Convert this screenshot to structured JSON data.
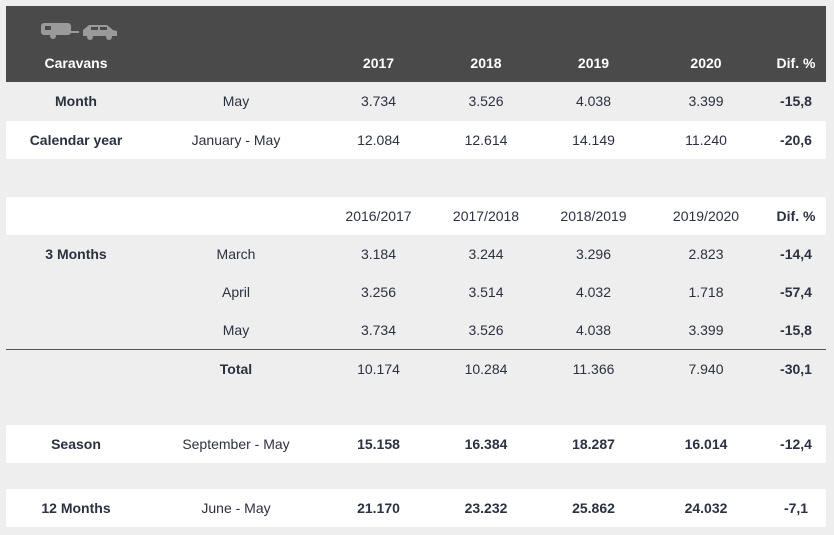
{
  "header": {
    "title": "Caravans",
    "icons": [
      "caravan-icon",
      "car-icon"
    ],
    "years": [
      "2017",
      "2018",
      "2019",
      "2020"
    ],
    "diff": "Dif. %",
    "bg_color": "#4a4a4a"
  },
  "month_row": {
    "label": "Month",
    "period": "May",
    "values": [
      "3.734",
      "3.526",
      "4.038",
      "3.399"
    ],
    "diff": "-15,8"
  },
  "calendar_row": {
    "label": "Calendar year",
    "period": "January - May",
    "values": [
      "12.084",
      "12.614",
      "14.149",
      "11.240"
    ],
    "diff": "-20,6"
  },
  "three_months": {
    "header": {
      "years": [
        "2016/2017",
        "2017/2018",
        "2018/2019",
        "2019/2020"
      ],
      "diff": "Dif. %"
    },
    "label": "3 Months",
    "rows": [
      {
        "period": "March",
        "values": [
          "3.184",
          "3.244",
          "3.296",
          "2.823"
        ],
        "diff": "-14,4"
      },
      {
        "period": "April",
        "values": [
          "3.256",
          "3.514",
          "4.032",
          "1.718"
        ],
        "diff": "-57,4"
      },
      {
        "period": "May",
        "values": [
          "3.734",
          "3.526",
          "4.038",
          "3.399"
        ],
        "diff": "-15,8"
      }
    ],
    "total": {
      "period": "Total",
      "values": [
        "10.174",
        "10.284",
        "11.366",
        "7.940"
      ],
      "diff": "-30,1"
    }
  },
  "season_row": {
    "label": "Season",
    "period": "September - May",
    "values": [
      "15.158",
      "16.384",
      "18.287",
      "16.014"
    ],
    "diff": "-12,4"
  },
  "twelve_row": {
    "label": "12 Months",
    "period": "June - May",
    "values": [
      "21.170",
      "23.232",
      "25.862",
      "24.032"
    ],
    "diff": "-7,1"
  }
}
